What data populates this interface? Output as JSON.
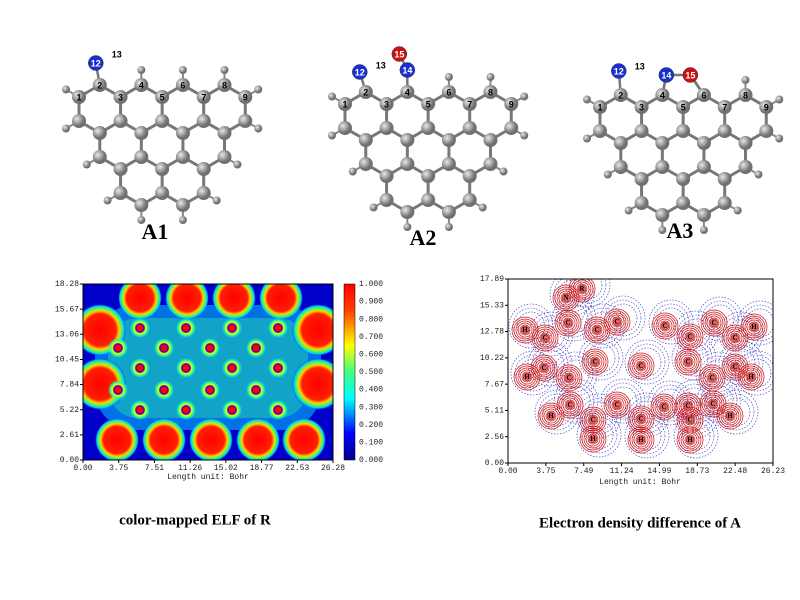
{
  "molecules": [
    {
      "name": "A1",
      "top_atoms": [
        "1",
        "2",
        "3",
        "4",
        "5",
        "6",
        "7",
        "8",
        "9"
      ],
      "substituents": [
        "12",
        "13"
      ]
    },
    {
      "name": "A2",
      "top_atoms": [
        "1",
        "2",
        "3",
        "4",
        "5",
        "6",
        "7",
        "8",
        "9"
      ],
      "substituents": [
        "12",
        "13",
        "14",
        "15"
      ]
    },
    {
      "name": "A3",
      "top_atoms": [
        "1",
        "2",
        "3",
        "4",
        "5",
        "6",
        "7",
        "8",
        "9"
      ],
      "substituents": [
        "12",
        "13",
        "14",
        "15"
      ]
    }
  ],
  "elf_plot": {
    "caption": "color-mapped ELF of R",
    "axis_label": "Length unit: Bohr",
    "xticks": [
      "0.00",
      "3.75",
      "7.51",
      "11.26",
      "15.02",
      "18.77",
      "22.53",
      "26.28"
    ],
    "yticks": [
      "0.00",
      "2.61",
      "5.22",
      "7.84",
      "10.45",
      "13.06",
      "15.67",
      "18.28"
    ],
    "colorbar_ticks": [
      "0.000",
      "0.100",
      "0.200",
      "0.300",
      "0.400",
      "0.500",
      "0.600",
      "0.700",
      "0.800",
      "0.900",
      "1.000"
    ]
  },
  "density_plot": {
    "caption": "Electron density difference of A",
    "axis_label": "Length unit: Bohr",
    "xticks": [
      "0.00",
      "3.75",
      "7.49",
      "11.24",
      "14.99",
      "18.73",
      "22.48",
      "26.23"
    ],
    "yticks": [
      "0.00",
      "2.56",
      "5.11",
      "7.67",
      "10.22",
      "12.78",
      "15.33",
      "17.89"
    ],
    "atom_labels": [
      "R",
      "N",
      "H",
      "C",
      "C",
      "C",
      "C",
      "C",
      "C",
      "C",
      "C",
      "H",
      "C",
      "H",
      "C",
      "C",
      "C",
      "C",
      "C",
      "C",
      "H",
      "C",
      "C",
      "C",
      "C",
      "C",
      "H",
      "H",
      "C",
      "C",
      "C",
      "H",
      "H",
      "H"
    ]
  }
}
